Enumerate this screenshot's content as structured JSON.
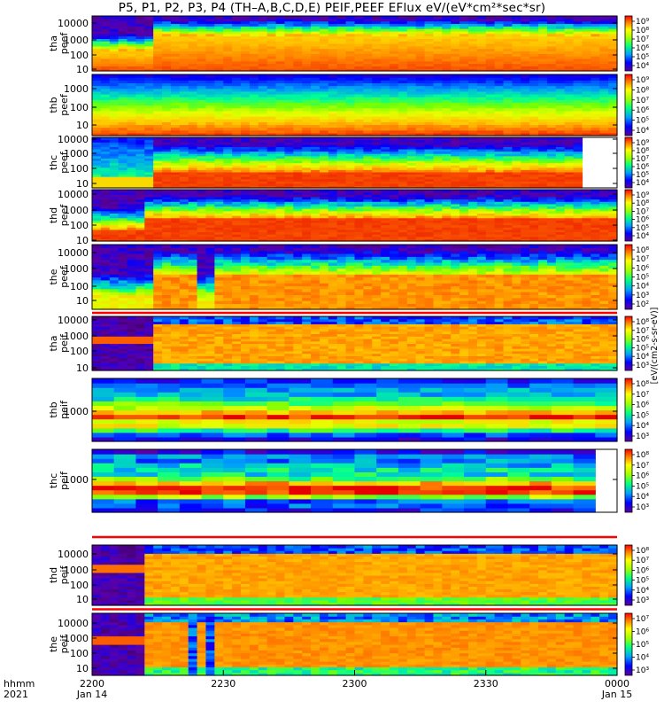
{
  "title": "P5, P1, P2, P3, P4 (TH–A,B,C,D,E) PEIF,PEEF EFlux eV/(eV*cm²*sec*sr)",
  "colorbar_unit_label": "[eV/(cm2-s-sr-eV)]",
  "time_axis": {
    "label_line1": "hhmm",
    "label_line2": "2021",
    "ticks": [
      {
        "t": "2200",
        "d": "Jan 14"
      },
      {
        "t": "2230",
        "d": ""
      },
      {
        "t": "2300",
        "d": ""
      },
      {
        "t": "2330",
        "d": ""
      },
      {
        "t": "0000",
        "d": "Jan 15"
      }
    ]
  },
  "chart_data": {
    "type": "heatmap",
    "x_range": [
      "2021-01-14 22:00",
      "2021-01-15 00:00"
    ],
    "y_scale": "log",
    "colormap": "rainbow",
    "z_unit": "eV/(eV*cm²*sec*sr)",
    "panels": [
      {
        "probe": "tha",
        "product": "peef",
        "ylabel1": "tha",
        "ylabel2": "peef",
        "yticks": [
          "10",
          "100",
          "1000",
          "10000"
        ],
        "cb_ticks": [
          "10⁴",
          "10⁵",
          "10⁶",
          "10⁷",
          "10⁸",
          "10⁹"
        ]
      },
      {
        "probe": "thb",
        "product": "peef",
        "ylabel1": "thb",
        "ylabel2": "peef",
        "yticks": [
          "10",
          "100",
          "1000"
        ],
        "cb_ticks": [
          "10⁴",
          "10⁵",
          "10⁶",
          "10⁷",
          "10⁸",
          "10⁹"
        ]
      },
      {
        "probe": "thc",
        "product": "peef",
        "ylabel1": "thc",
        "ylabel2": "peef",
        "yticks": [
          "10",
          "100",
          "1000",
          "10000"
        ],
        "cb_ticks": [
          "10⁴",
          "10⁵",
          "10⁶",
          "10⁷",
          "10⁸",
          "10⁹"
        ]
      },
      {
        "probe": "thd",
        "product": "peef",
        "ylabel1": "thd",
        "ylabel2": "peef",
        "yticks": [
          "10",
          "100",
          "1000",
          "10000"
        ],
        "cb_ticks": [
          "10⁴",
          "10⁵",
          "10⁶",
          "10⁷",
          "10⁸",
          "10⁹"
        ]
      },
      {
        "probe": "the",
        "product": "peef",
        "ylabel1": "the",
        "ylabel2": "peef",
        "yticks": [
          "10",
          "100",
          "1000",
          "10000"
        ],
        "cb_ticks": [
          "10²",
          "10³",
          "10⁴",
          "10⁵",
          "10⁶",
          "10⁷",
          "10⁸"
        ]
      },
      {
        "probe": "tha",
        "product": "peif",
        "ylabel1": "tha",
        "ylabel2": "peif",
        "yticks": [
          "10",
          "100",
          "1000",
          "10000"
        ],
        "cb_ticks": [
          "10³",
          "10⁴",
          "10⁵",
          "10⁶",
          "10⁷",
          "10⁸"
        ]
      },
      {
        "probe": "thb",
        "product": "peif",
        "ylabel1": "thb",
        "ylabel2": "peif",
        "yticks": [
          "1000"
        ],
        "cb_ticks": [
          "10³",
          "10⁴",
          "10⁵",
          "10⁶",
          "10⁷",
          "10⁸"
        ]
      },
      {
        "probe": "thc",
        "product": "peif",
        "ylabel1": "thc",
        "ylabel2": "peif",
        "yticks": [
          "1000"
        ],
        "cb_ticks": [
          "10³",
          "10⁴",
          "10⁵",
          "10⁶",
          "10⁷",
          "10⁸"
        ]
      },
      {
        "probe": "thd",
        "product": "peif",
        "ylabel1": "thd",
        "ylabel2": "peif",
        "yticks": [
          "10",
          "100",
          "1000",
          "10000"
        ],
        "cb_ticks": [
          "10³",
          "10⁴",
          "10⁵",
          "10⁶",
          "10⁷",
          "10⁸"
        ]
      },
      {
        "probe": "the",
        "product": "peif",
        "ylabel1": "the",
        "ylabel2": "peif",
        "yticks": [
          "10",
          "100",
          "1000",
          "10000"
        ],
        "cb_ticks": [
          "10³",
          "10⁴",
          "10⁵",
          "10⁶",
          "10⁷"
        ]
      }
    ]
  }
}
